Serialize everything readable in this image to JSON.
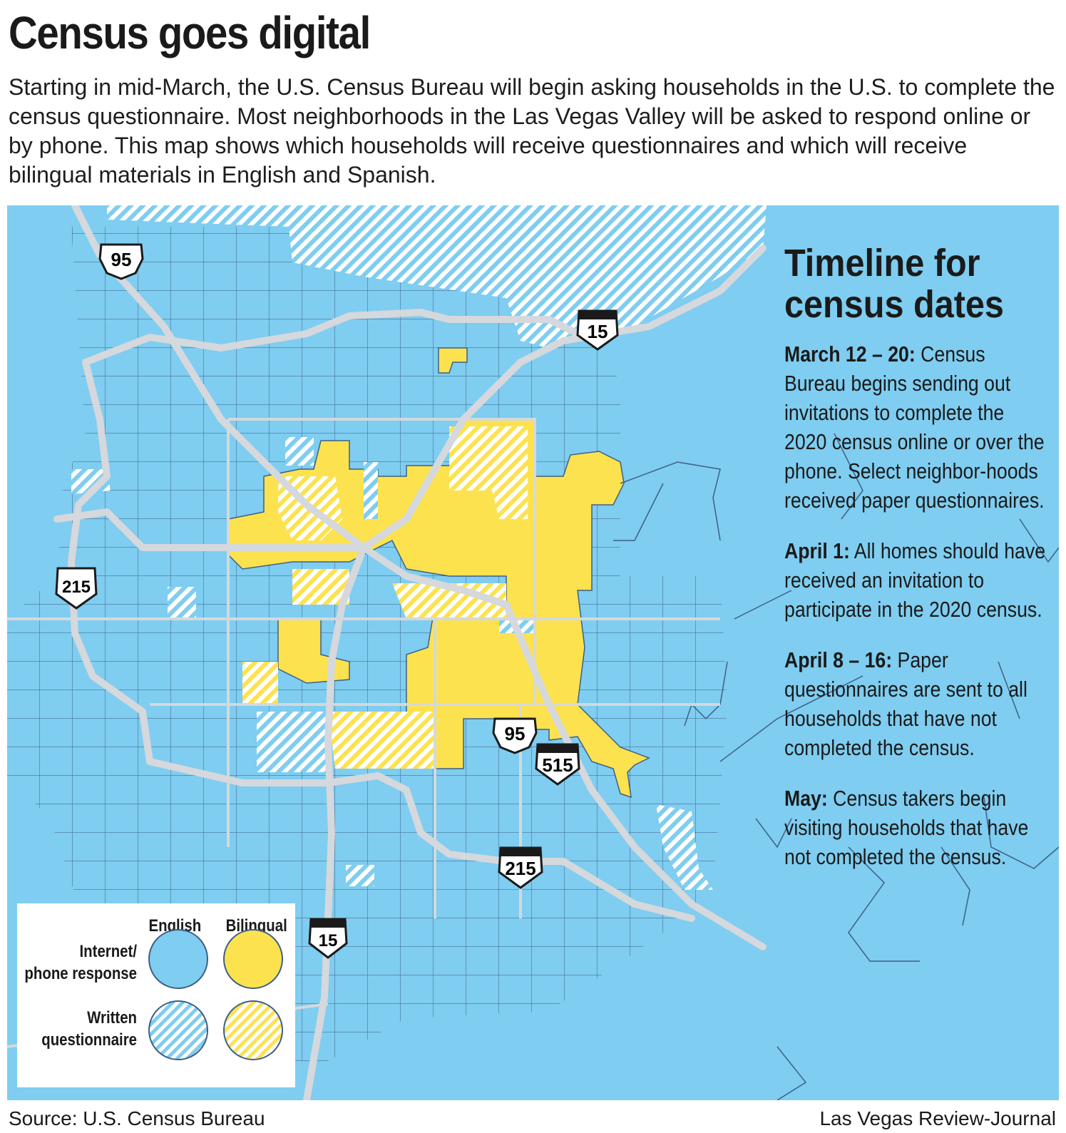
{
  "header": {
    "title": "Census goes digital",
    "intro": "Starting in mid-March, the U.S. Census Bureau will begin asking households in the U.S. to complete the census questionnaire. Most neighborhoods in the Las Vegas Valley will be asked to respond online or by phone. This map shows which households will receive questionnaires and which will receive bilingual materials in English and Spanish."
  },
  "colors": {
    "water_blue": "#7fcdf0",
    "bilingual_yellow": "#fde24f",
    "boundary_line": "#3e5f86",
    "highway_gray": "#d5d8dc",
    "shield_black": "#1a1a1a"
  },
  "timeline": {
    "heading": "Timeline for census dates",
    "items": [
      {
        "date": "March 12 – 20:",
        "text": " Census Bureau begins sending out invitations to complete the 2020 census online or over the phone. Select neighbor-hoods received paper questionnaires."
      },
      {
        "date": "April 1:",
        "text": " All homes should have received an invitation to participate in the 2020 census."
      },
      {
        "date": "April 8 – 16:",
        "text": " Paper questionnaires are sent to all households that have not completed the census."
      },
      {
        "date": "May:",
        "text": " Census takers begin visiting households that have not completed the census."
      }
    ]
  },
  "legend": {
    "col_english": "English",
    "col_bilingual": "Bilingual",
    "row_internet": "Internet/\nphone response",
    "row_written": "Written\nquestionnaire"
  },
  "highway_shields": [
    {
      "label": "95",
      "type": "us"
    },
    {
      "label": "15",
      "type": "interstate"
    },
    {
      "label": "215",
      "type": "state"
    },
    {
      "label": "95",
      "type": "us"
    },
    {
      "label": "515",
      "type": "interstate"
    },
    {
      "label": "215",
      "type": "interstate"
    },
    {
      "label": "15",
      "type": "interstate"
    }
  ],
  "footer": {
    "source": "Source: U.S. Census Bureau",
    "credit": "Las Vegas Review-Journal"
  }
}
